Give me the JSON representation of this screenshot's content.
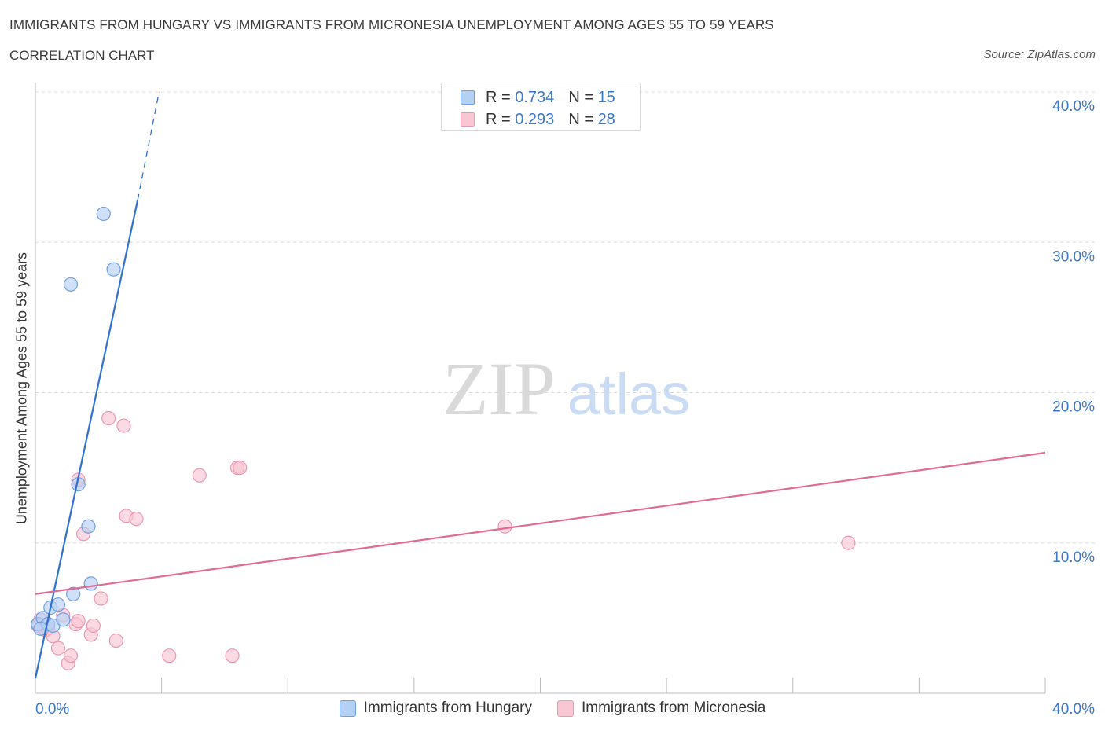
{
  "title": "IMMIGRANTS FROM HUNGARY VS IMMIGRANTS FROM MICRONESIA UNEMPLOYMENT AMONG AGES 55 TO 59 YEARS",
  "subtitle": "CORRELATION CHART",
  "source": "Source: ZipAtlas.com",
  "watermark": {
    "zip": "ZIP",
    "atlas": "atlas"
  },
  "legend": {
    "rows": [
      {
        "r_label": "R =",
        "r_value": "0.734",
        "n_label": "N =",
        "n_value": "15"
      },
      {
        "r_label": "R =",
        "r_value": "0.293",
        "n_label": "N =",
        "n_value": "28"
      }
    ]
  },
  "bottom_legend": {
    "hungary": "Immigrants from Hungary",
    "micronesia": "Immigrants from Micronesia"
  },
  "colors": {
    "hungary_fill": "#b5d0f5",
    "hungary_stroke": "#6e9fe0",
    "hungary_line": "#2f6fd0",
    "micronesia_fill": "#f9c6d4",
    "micronesia_stroke": "#eb97b1",
    "micronesia_line": "#e06b96",
    "axis_text": "#3a78c9",
    "grid": "#dcdcdc"
  },
  "chart_data": {
    "type": "scatter",
    "xlabel": "",
    "ylabel": "Unemployment Among Ages 55 to 59 years",
    "x_tick_labels": {
      "left": "0.0%",
      "right": "40.0%"
    },
    "xlim": [
      0,
      40
    ],
    "ylim": [
      0,
      40
    ],
    "y_ticks": [
      {
        "value": 10,
        "label": "10.0%"
      },
      {
        "value": 20,
        "label": "20.0%"
      },
      {
        "value": 30,
        "label": "30.0%"
      },
      {
        "value": 40,
        "label": "40.0%"
      }
    ],
    "series": [
      {
        "name": "Immigrants from Hungary",
        "points": [
          [
            0.1,
            4.6
          ],
          [
            0.3,
            5.0
          ],
          [
            0.5,
            4.6
          ],
          [
            0.6,
            5.7
          ],
          [
            0.7,
            4.5
          ],
          [
            0.9,
            5.9
          ],
          [
            1.1,
            4.9
          ],
          [
            1.4,
            27.2
          ],
          [
            1.5,
            6.6
          ],
          [
            1.7,
            13.9
          ],
          [
            2.1,
            11.1
          ],
          [
            2.2,
            7.3
          ],
          [
            2.7,
            31.9
          ],
          [
            3.1,
            28.2
          ],
          [
            0.2,
            4.3
          ]
        ],
        "trend": {
          "from": [
            0.0,
            1.0
          ],
          "to": [
            4.05,
            32.8
          ],
          "dashed_to": [
            4.9,
            40.0
          ]
        }
      },
      {
        "name": "Immigrants from Micronesia",
        "points": [
          [
            0.1,
            4.5
          ],
          [
            0.2,
            4.9
          ],
          [
            0.4,
            4.2
          ],
          [
            0.5,
            4.3
          ],
          [
            0.7,
            3.8
          ],
          [
            0.9,
            3.0
          ],
          [
            1.1,
            5.2
          ],
          [
            1.3,
            2.0
          ],
          [
            1.4,
            2.5
          ],
          [
            1.6,
            4.6
          ],
          [
            1.7,
            14.2
          ],
          [
            1.7,
            4.8
          ],
          [
            1.9,
            10.6
          ],
          [
            2.2,
            3.9
          ],
          [
            2.3,
            4.5
          ],
          [
            2.6,
            6.3
          ],
          [
            2.9,
            18.3
          ],
          [
            3.2,
            3.5
          ],
          [
            3.5,
            17.8
          ],
          [
            3.6,
            11.8
          ],
          [
            4.0,
            11.6
          ],
          [
            5.3,
            2.5
          ],
          [
            6.5,
            14.5
          ],
          [
            7.8,
            2.5
          ],
          [
            8.0,
            15.0
          ],
          [
            8.1,
            15.0
          ],
          [
            18.6,
            11.1
          ],
          [
            32.2,
            10.0
          ]
        ],
        "trend": {
          "from": [
            0.0,
            6.6
          ],
          "to": [
            40.0,
            16.0
          ]
        }
      }
    ]
  }
}
